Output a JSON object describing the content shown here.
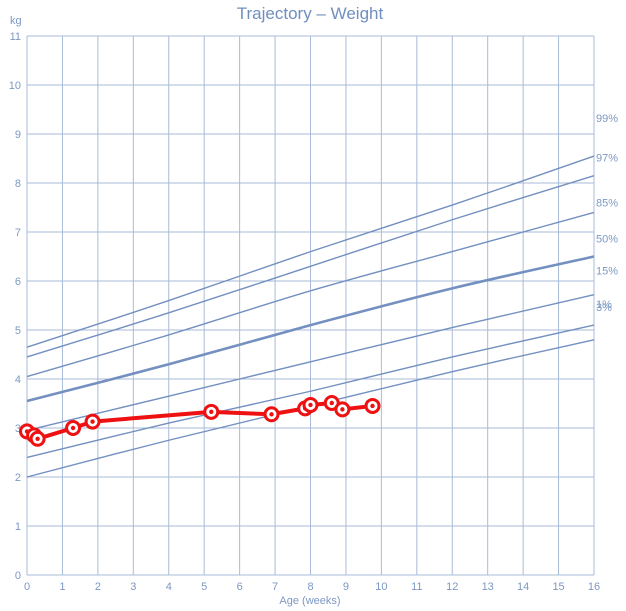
{
  "chart_data": {
    "type": "line",
    "title": "Trajectory – Weight",
    "xlabel": "Age (weeks)",
    "ylabel": "kg",
    "xlim": [
      0,
      16
    ],
    "ylim": [
      0,
      11
    ],
    "x_ticks": [
      "0",
      "1",
      "2",
      "3",
      "4",
      "5",
      "6",
      "7",
      "8",
      "9",
      "10",
      "11",
      "12",
      "13",
      "14",
      "15",
      "16"
    ],
    "y_ticks": [
      "0",
      "1",
      "2",
      "3",
      "4",
      "5",
      "6",
      "7",
      "8",
      "9",
      "10",
      "11"
    ],
    "grid": true,
    "colors": {
      "grid": "#a9bbd8",
      "curve": "#7390c0",
      "patient": "#ee1111",
      "text": "#7d98c4"
    },
    "percentile_curves": [
      {
        "name": "99%",
        "x": [
          0,
          4,
          8,
          12,
          16
        ],
        "y": [
          4.65,
          5.6,
          6.6,
          7.55,
          8.55
        ]
      },
      {
        "name": "97%",
        "x": [
          0,
          4,
          8,
          12,
          16
        ],
        "y": [
          4.45,
          5.35,
          6.3,
          7.25,
          8.15
        ]
      },
      {
        "name": "85%",
        "x": [
          0,
          4,
          8,
          12,
          16
        ],
        "y": [
          4.05,
          4.9,
          5.8,
          6.6,
          7.4
        ]
      },
      {
        "name": "50%",
        "x": [
          0,
          4,
          8,
          12,
          16
        ],
        "y": [
          3.55,
          4.3,
          5.1,
          5.85,
          6.5
        ],
        "bold": true
      },
      {
        "name": "15%",
        "x": [
          0,
          4,
          8,
          12,
          16
        ],
        "y": [
          2.95,
          3.65,
          4.35,
          5.05,
          5.72
        ]
      },
      {
        "name": "3%",
        "x": [
          0,
          4,
          8,
          12,
          16
        ],
        "y": [
          2.4,
          3.1,
          3.75,
          4.45,
          5.1
        ]
      },
      {
        "name": "1%",
        "x": [
          0,
          4,
          8,
          12,
          16
        ],
        "y": [
          2.0,
          2.75,
          3.45,
          4.15,
          4.8
        ]
      }
    ],
    "series": [
      {
        "x": [
          0.0,
          0.2,
          0.3,
          1.3,
          1.85,
          5.2,
          6.9,
          7.85,
          8.0,
          8.6,
          8.9,
          9.75
        ],
        "y": [
          2.93,
          2.85,
          2.78,
          3.0,
          3.13,
          3.33,
          3.28,
          3.4,
          3.47,
          3.51,
          3.38,
          3.45
        ]
      }
    ]
  }
}
